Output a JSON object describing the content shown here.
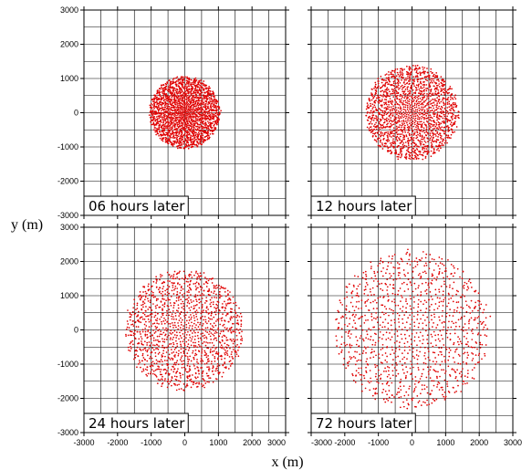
{
  "chart_data": {
    "type": "scatter",
    "xlabel": "x (m)",
    "ylabel": "y (m)",
    "xlim": [
      -3000,
      3000
    ],
    "ylim": [
      -3000,
      3000
    ],
    "xticks": [
      -3000,
      -2000,
      -1000,
      0,
      1000,
      2000,
      3000
    ],
    "yticks": [
      -3000,
      -2000,
      -1000,
      0,
      1000,
      2000,
      3000
    ],
    "grid": true,
    "gridStep": 500,
    "markerColor": "#e00000",
    "panels": [
      {
        "label": "06 hours later",
        "radius": 1050,
        "points": 1800
      },
      {
        "label": "12 hours later",
        "radius": 1380,
        "points": 1600
      },
      {
        "label": "24 hours later",
        "radius": 1750,
        "points": 1350
      },
      {
        "label": "72 hours later",
        "radius": 2300,
        "points": 1100
      }
    ]
  }
}
